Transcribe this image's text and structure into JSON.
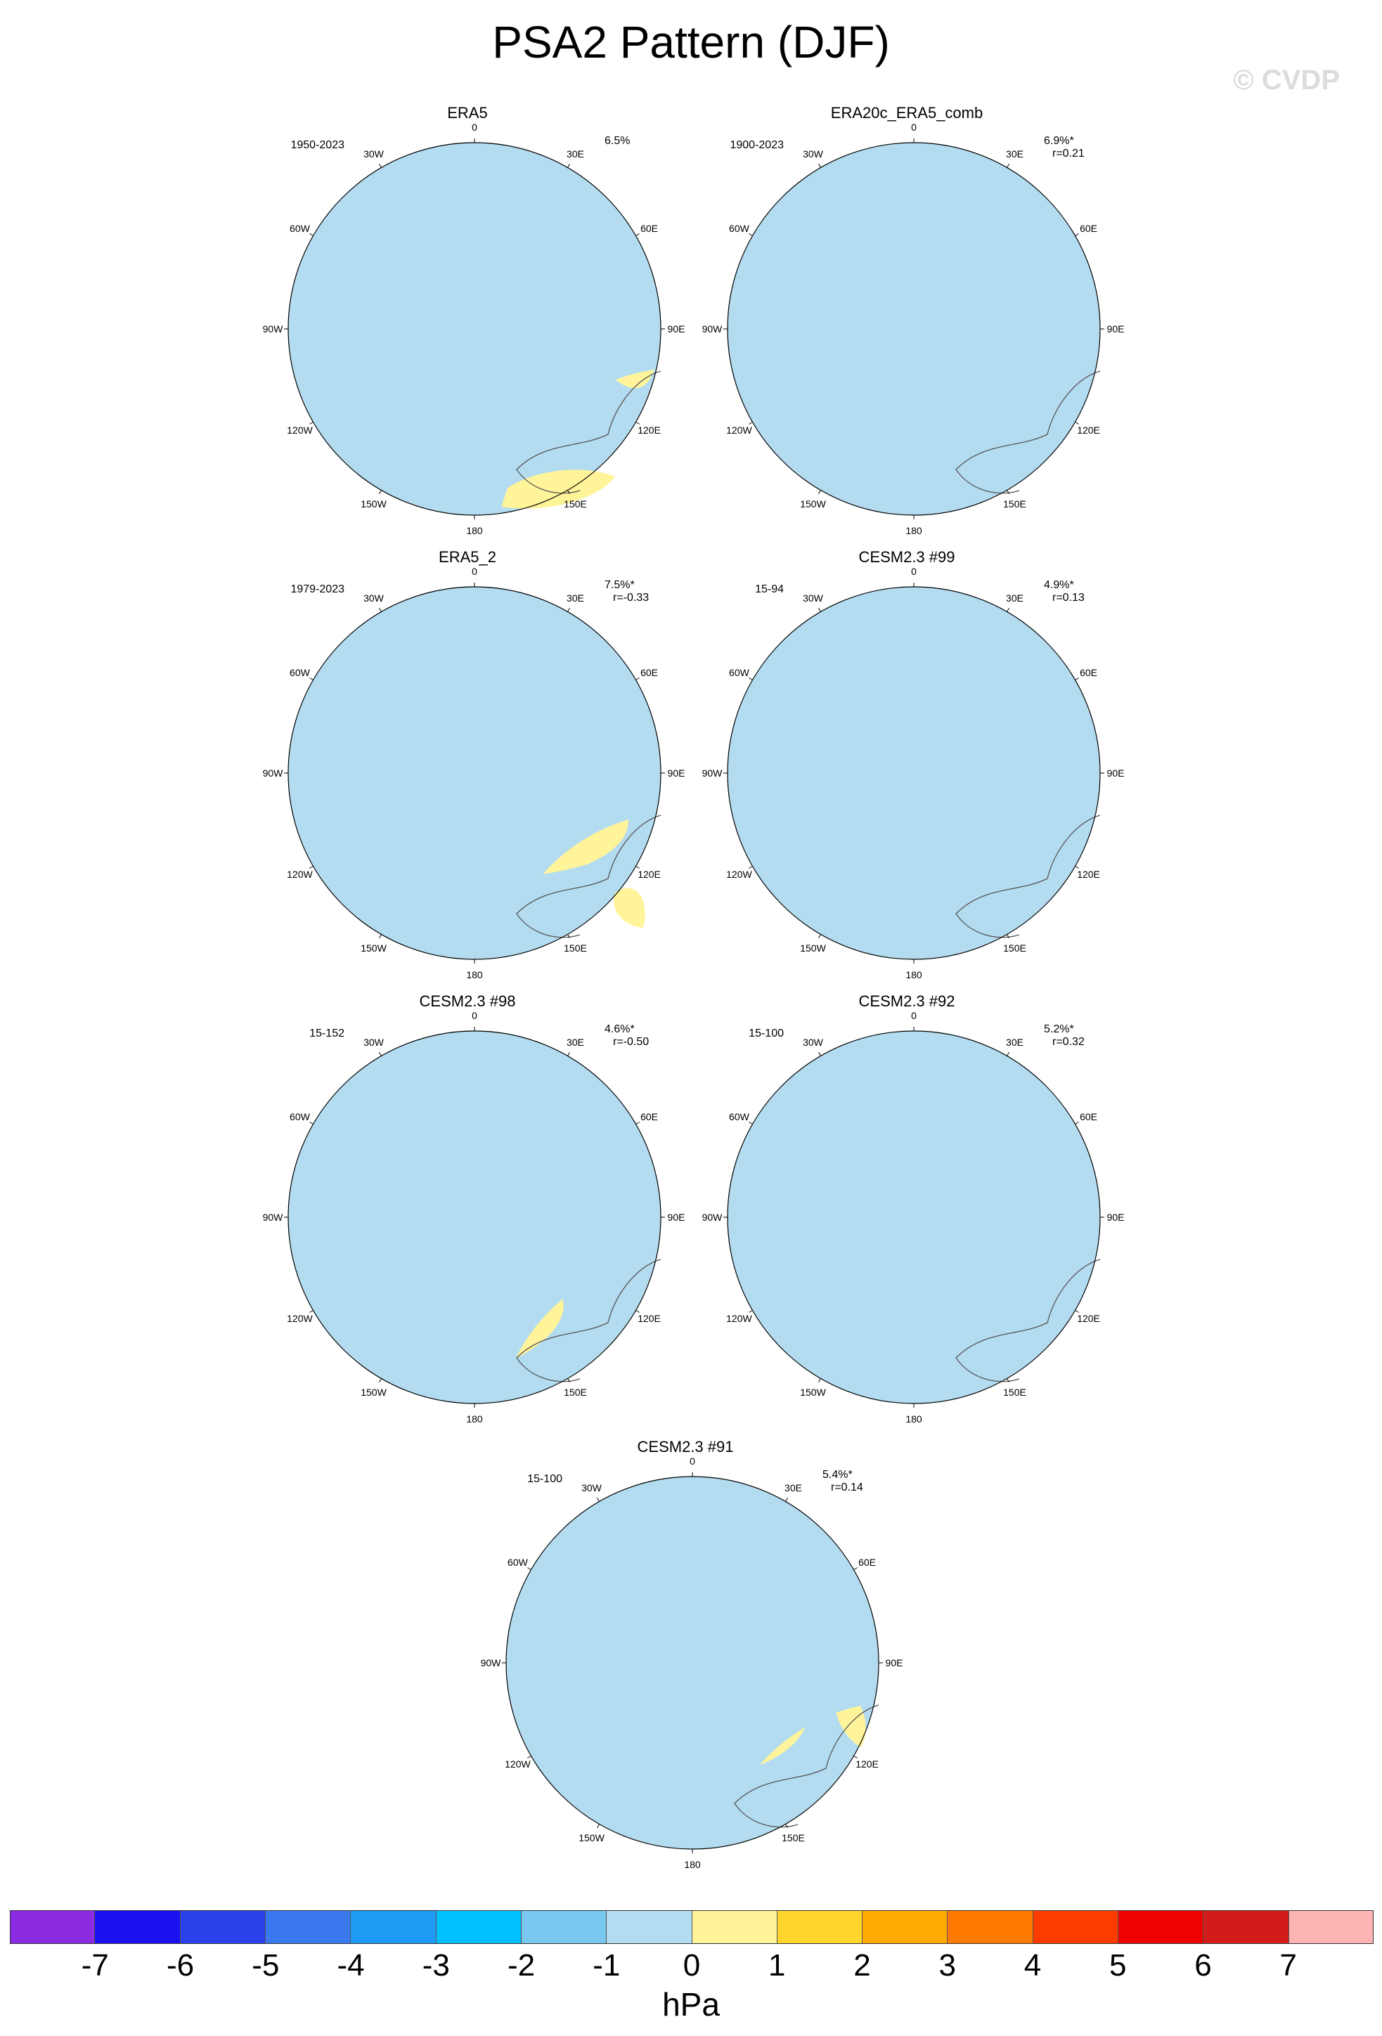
{
  "title": "PSA2 Pattern (DJF)",
  "watermark": "© CVDP",
  "longitude_labels": {
    "n": "0",
    "n30e": "30E",
    "n60e": "60E",
    "e": "90E",
    "s120e": "120E",
    "s150e": "150E",
    "s": "180",
    "s150w": "150W",
    "s120w": "120W",
    "w": "90W",
    "n60w": "60W",
    "n30w": "30W"
  },
  "panels": [
    {
      "title": "ERA5",
      "period": "1950-2023",
      "pct": "6.5%",
      "r": ""
    },
    {
      "title": "ERA20c_ERA5_comb",
      "period": "1900-2023",
      "pct": "6.9%*",
      "r": "r=0.21"
    },
    {
      "title": "ERA5_2",
      "period": "1979-2023",
      "pct": "7.5%*",
      "r": "r=-0.33"
    },
    {
      "title": "CESM2.3 #99",
      "period": "15-94",
      "pct": "4.9%*",
      "r": "r=0.13"
    },
    {
      "title": "CESM2.3 #98",
      "period": "15-152",
      "pct": "4.6%*",
      "r": "r=-0.50"
    },
    {
      "title": "CESM2.3 #92",
      "period": "15-100",
      "pct": "5.2%*",
      "r": "r=0.32"
    },
    {
      "title": "CESM2.3 #91",
      "period": "15-100",
      "pct": "5.4%*",
      "r": "r=0.14"
    }
  ],
  "colorbar": {
    "unit": "hPa",
    "labels": [
      "-7",
      "-6",
      "-5",
      "-4",
      "-3",
      "-2",
      "-1",
      "0",
      "1",
      "2",
      "3",
      "4",
      "5",
      "6",
      "7"
    ],
    "colors": [
      "#8a2be2",
      "#1a10f0",
      "#2a40e8",
      "#3a78f0",
      "#1e9af5",
      "#00c0ff",
      "#78c8f0",
      "#b4dcf0",
      "#fff49a",
      "#ffd52e",
      "#ffaa00",
      "#ff7a00",
      "#ff3c00",
      "#f00000",
      "#d21c1c",
      "#ffb4b4"
    ]
  }
}
